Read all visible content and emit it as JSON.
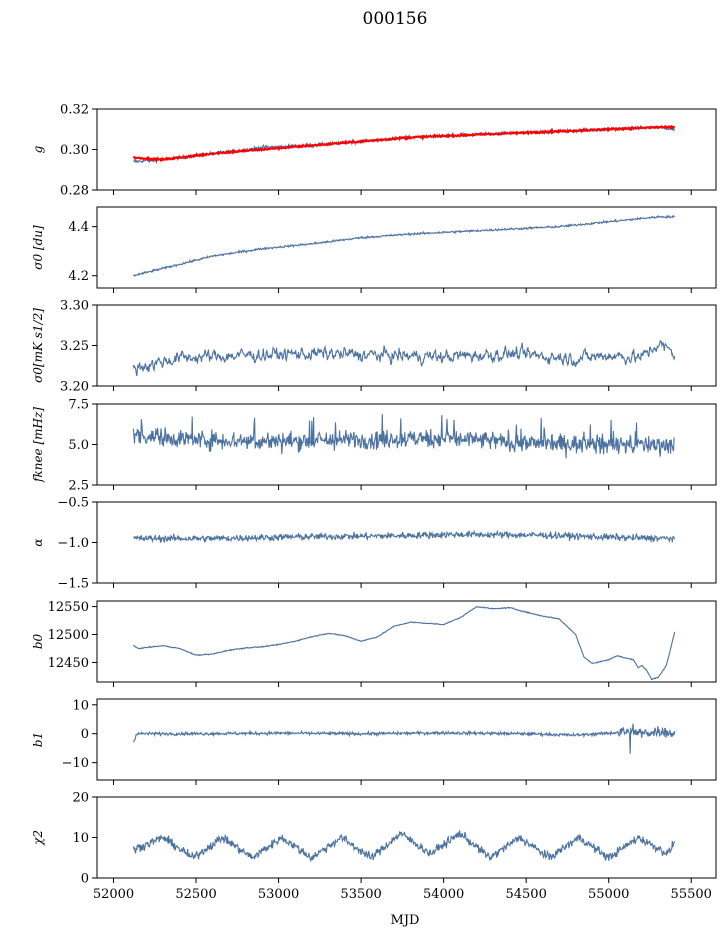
{
  "figure": {
    "title": "000156",
    "xlabel": "MJD",
    "xlim": [
      51900,
      55650
    ],
    "xticks": [
      52000,
      52500,
      53000,
      53500,
      54000,
      54500,
      55000,
      55500
    ],
    "colors": {
      "series": "#4c72a0",
      "fit": "#ff0000",
      "axis": "#000000"
    }
  },
  "chart_data": [
    {
      "type": "line",
      "ylabel": "g",
      "ylim": [
        0.28,
        0.32
      ],
      "yticks": [
        0.28,
        0.3,
        0.32
      ],
      "ytick_labels": [
        "0.28",
        "0.30",
        "0.32"
      ],
      "x": [
        52120,
        52300,
        52600,
        52900,
        53200,
        53500,
        53800,
        54100,
        54400,
        54700,
        55000,
        55300,
        55400
      ],
      "series": [
        {
          "values": [
            0.294,
            0.295,
            0.298,
            0.301,
            0.302,
            0.304,
            0.306,
            0.307,
            0.308,
            0.309,
            0.31,
            0.311,
            0.31
          ]
        },
        {
          "values": [
            0.296,
            0.295,
            0.298,
            0.3,
            0.302,
            0.304,
            0.306,
            0.307,
            0.308,
            0.309,
            0.31,
            0.311,
            0.311
          ]
        }
      ],
      "noise": 0.0008
    },
    {
      "type": "line",
      "ylabel": "σ0 [du]",
      "ylim": [
        4.15,
        4.48
      ],
      "yticks": [
        4.2,
        4.4
      ],
      "ytick_labels": [
        "4.2",
        "4.4"
      ],
      "x": [
        52120,
        52300,
        52600,
        52900,
        53200,
        53500,
        53800,
        54100,
        54400,
        54700,
        55000,
        55300,
        55400
      ],
      "series": [
        {
          "values": [
            4.2,
            4.23,
            4.28,
            4.31,
            4.33,
            4.355,
            4.37,
            4.38,
            4.39,
            4.4,
            4.42,
            4.44,
            4.44
          ]
        }
      ],
      "noise": 0.004
    },
    {
      "type": "line",
      "ylabel": "σ0[mK s1/2]",
      "ylim": [
        3.2,
        3.3
      ],
      "yticks": [
        3.2,
        3.25,
        3.3
      ],
      "ytick_labels": [
        "3.20",
        "3.25",
        "3.30"
      ],
      "x": [
        52120,
        52400,
        52800,
        53200,
        53600,
        54000,
        54400,
        54800,
        55000,
        55200,
        55300,
        55400
      ],
      "series": [
        {
          "values": [
            3.222,
            3.235,
            3.238,
            3.24,
            3.238,
            3.236,
            3.24,
            3.234,
            3.238,
            3.235,
            3.252,
            3.24
          ]
        }
      ],
      "noise": 0.01
    },
    {
      "type": "line",
      "ylabel": "fknee [mHz]",
      "ylim": [
        2.5,
        7.5
      ],
      "yticks": [
        2.5,
        5.0,
        7.5
      ],
      "ytick_labels": [
        "2.5",
        "5.0",
        "7.5"
      ],
      "x": [
        52120,
        52500,
        53000,
        53500,
        54000,
        54500,
        55000,
        55400
      ],
      "series": [
        {
          "values": [
            5.6,
            5.3,
            5.2,
            5.3,
            5.4,
            5.1,
            5.0,
            5.0
          ]
        }
      ],
      "noise": 0.55
    },
    {
      "type": "line",
      "ylabel": "α",
      "ylim": [
        -1.5,
        -0.5
      ],
      "yticks": [
        -1.5,
        -1.0,
        -0.5
      ],
      "ytick_labels": [
        "−1.5",
        "−1.0",
        "−0.5"
      ],
      "x": [
        52120,
        52600,
        53100,
        53600,
        54100,
        54600,
        55100,
        55400
      ],
      "series": [
        {
          "values": [
            -0.95,
            -0.95,
            -0.93,
            -0.92,
            -0.9,
            -0.91,
            -0.94,
            -0.95
          ]
        }
      ],
      "noise": 0.04
    },
    {
      "type": "line",
      "ylabel": "b0",
      "ylim": [
        12415,
        12560
      ],
      "yticks": [
        12450,
        12500,
        12550
      ],
      "ytick_labels": [
        "12450",
        "12500",
        "12550"
      ],
      "x": [
        52120,
        52150,
        52300,
        52400,
        52500,
        52600,
        52700,
        52800,
        52900,
        53000,
        53100,
        53200,
        53300,
        53400,
        53500,
        53600,
        53700,
        53800,
        53900,
        54000,
        54100,
        54200,
        54300,
        54400,
        54500,
        54600,
        54700,
        54800,
        54850,
        54900,
        55000,
        55050,
        55100,
        55150,
        55180,
        55200,
        55230,
        55260,
        55300,
        55350,
        55400
      ],
      "series": [
        {
          "values": [
            12480,
            12475,
            12480,
            12475,
            12463,
            12465,
            12472,
            12476,
            12478,
            12482,
            12488,
            12496,
            12502,
            12498,
            12488,
            12496,
            12515,
            12522,
            12520,
            12518,
            12530,
            12550,
            12546,
            12548,
            12540,
            12533,
            12528,
            12500,
            12460,
            12448,
            12455,
            12462,
            12458,
            12455,
            12440,
            12445,
            12436,
            12420,
            12423,
            12445,
            12505
          ]
        }
      ],
      "noise": 0.8
    },
    {
      "type": "line",
      "ylabel": "b1",
      "ylim": [
        -16,
        12
      ],
      "yticks": [
        -10,
        0,
        10
      ],
      "ytick_labels": [
        "−10",
        "0",
        "10"
      ],
      "x": [
        52120,
        52140,
        52500,
        53000,
        53500,
        54000,
        54500,
        54800,
        55000,
        55100,
        55200,
        55300,
        55400
      ],
      "series": [
        {
          "values": [
            -3,
            0,
            0,
            0.2,
            0,
            0.3,
            0,
            -0.5,
            0.2,
            0.5,
            0,
            1,
            0
          ]
        }
      ],
      "noise": 0.5
    },
    {
      "type": "line",
      "ylabel": "χ2",
      "ylim": [
        0,
        20
      ],
      "yticks": [
        0,
        10,
        20
      ],
      "ytick_labels": [
        "0",
        "10",
        "20"
      ],
      "x": [
        52120,
        52300,
        52480,
        52660,
        52840,
        53020,
        53200,
        53380,
        53560,
        53740,
        53920,
        54100,
        54280,
        54460,
        54640,
        54820,
        55000,
        55180,
        55360,
        55400
      ],
      "series": [
        {
          "values": [
            7,
            10,
            5,
            10,
            5,
            10,
            5,
            10,
            5,
            11,
            6,
            11,
            5,
            10,
            5,
            10,
            5,
            10,
            6,
            9
          ]
        }
      ],
      "noise": 1.0
    }
  ]
}
